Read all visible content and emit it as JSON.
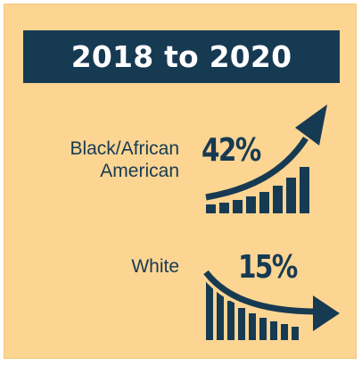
{
  "header": {
    "title": "2018 to 2020"
  },
  "groups": [
    {
      "label": "Black/African American",
      "label_line1": "Black/African",
      "label_line2": "American",
      "percent": "42%",
      "trend": "up",
      "icon": "rising-bar-arrow-icon"
    },
    {
      "label": "White",
      "percent": "15%",
      "trend": "down",
      "icon": "falling-bar-arrow-icon"
    }
  ],
  "colors": {
    "background": "#fcd593",
    "navy": "#173a53",
    "text_light": "#ffffff"
  }
}
